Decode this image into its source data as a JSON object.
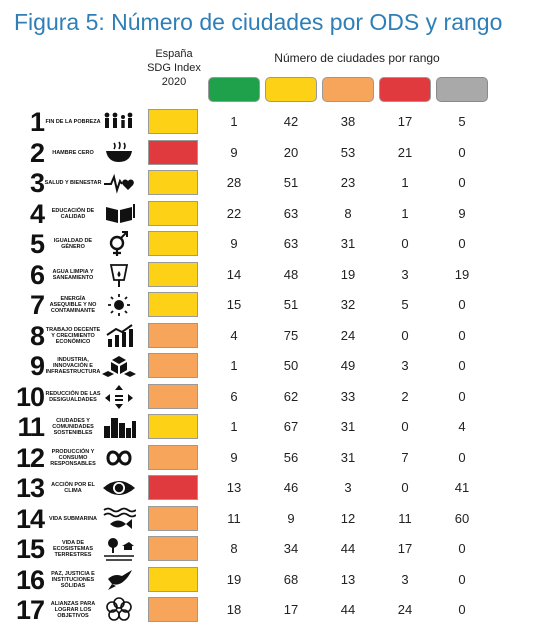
{
  "title": "Figura 5: Número de ciudades por ODS y rango",
  "sdg_index_header": [
    "España",
    "SDG Index",
    "2020"
  ],
  "range_header": "Número de ciudades por rango",
  "colors": {
    "green": "#1fa04a",
    "yellow": "#fcd116",
    "orange": "#f7a55a",
    "red": "#e03a3e",
    "grey": "#a9a9a9",
    "title": "#2e7fb8"
  },
  "legend": [
    "green",
    "yellow",
    "orange",
    "red",
    "grey"
  ],
  "chart_data": {
    "type": "table",
    "title": "Figura 5: Número de ciudades por ODS y rango",
    "columns": [
      "green",
      "yellow",
      "orange",
      "red",
      "grey"
    ],
    "rows": [
      {
        "goal": "1",
        "name": "Fin de la pobreza",
        "icon": "family-icon",
        "spain": "yellow",
        "counts": [
          1,
          42,
          38,
          17,
          5
        ]
      },
      {
        "goal": "2",
        "name": "Hambre cero",
        "icon": "bowl-icon",
        "spain": "red",
        "counts": [
          9,
          20,
          53,
          21,
          0
        ]
      },
      {
        "goal": "3",
        "name": "Salud y bienestar",
        "icon": "heartbeat-icon",
        "spain": "yellow",
        "counts": [
          28,
          51,
          23,
          1,
          0
        ]
      },
      {
        "goal": "4",
        "name": "Educación de calidad",
        "icon": "book-icon",
        "spain": "yellow",
        "counts": [
          22,
          63,
          8,
          1,
          9
        ]
      },
      {
        "goal": "5",
        "name": "Igualdad de género",
        "icon": "gender-icon",
        "spain": "yellow",
        "counts": [
          9,
          63,
          31,
          0,
          0
        ]
      },
      {
        "goal": "6",
        "name": "Agua limpia y saneamiento",
        "icon": "water-icon",
        "spain": "yellow",
        "counts": [
          14,
          48,
          19,
          3,
          19
        ]
      },
      {
        "goal": "7",
        "name": "Energía asequible y no contaminante",
        "icon": "sun-icon",
        "spain": "yellow",
        "counts": [
          15,
          51,
          32,
          5,
          0
        ]
      },
      {
        "goal": "8",
        "name": "Trabajo decente y crecimiento económico",
        "icon": "growth-chart-icon",
        "spain": "orange",
        "counts": [
          4,
          75,
          24,
          0,
          0
        ]
      },
      {
        "goal": "9",
        "name": "Industria, innovación e infraestructura",
        "icon": "cubes-icon",
        "spain": "orange",
        "counts": [
          1,
          50,
          49,
          3,
          0
        ]
      },
      {
        "goal": "10",
        "name": "Reducción de las desigualdades",
        "icon": "arrows-icon",
        "spain": "orange",
        "counts": [
          6,
          62,
          33,
          2,
          0
        ]
      },
      {
        "goal": "11",
        "name": "Ciudades y comunidades sostenibles",
        "icon": "city-icon",
        "spain": "yellow",
        "counts": [
          1,
          67,
          31,
          0,
          4
        ]
      },
      {
        "goal": "12",
        "name": "Producción y consumo responsables",
        "icon": "infinity-icon",
        "spain": "orange",
        "counts": [
          9,
          56,
          31,
          7,
          0
        ]
      },
      {
        "goal": "13",
        "name": "Acción por el clima",
        "icon": "eye-globe-icon",
        "spain": "red",
        "counts": [
          13,
          46,
          3,
          0,
          41
        ]
      },
      {
        "goal": "14",
        "name": "Vida submarina",
        "icon": "fish-icon",
        "spain": "orange",
        "counts": [
          11,
          9,
          12,
          11,
          60
        ]
      },
      {
        "goal": "15",
        "name": "Vida de ecosistemas terrestres",
        "icon": "tree-icon",
        "spain": "orange",
        "counts": [
          8,
          34,
          44,
          17,
          0
        ]
      },
      {
        "goal": "16",
        "name": "Paz, justicia e instituciones sólidas",
        "icon": "dove-icon",
        "spain": "yellow",
        "counts": [
          19,
          68,
          13,
          3,
          0
        ]
      },
      {
        "goal": "17",
        "name": "Alianzas para lograr los objetivos",
        "icon": "flower-rings-icon",
        "spain": "orange",
        "counts": [
          18,
          17,
          44,
          24,
          0
        ]
      }
    ]
  }
}
